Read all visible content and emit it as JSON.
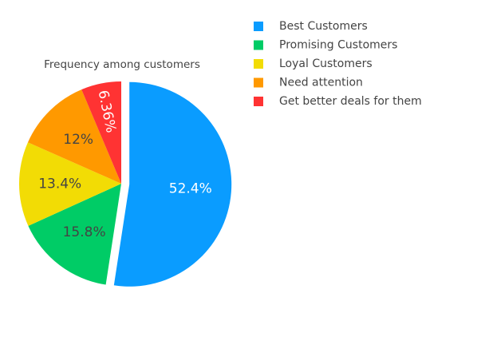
{
  "chart_data": {
    "type": "pie",
    "title": "Frequency among customers",
    "labels": [
      "Best Customers",
      "Promising Customers",
      "Loyal Customers",
      "Need attention",
      "Get better deals for them"
    ],
    "values": [
      52.4,
      15.8,
      13.4,
      12,
      6.36
    ],
    "display_labels": [
      "52.4%",
      "15.8%",
      "13.4%",
      "12%",
      "6.36%"
    ],
    "colors": [
      "#0a9cff",
      "#00cc66",
      "#f2dc05",
      "#ff9900",
      "#ff3333"
    ],
    "pull": [
      0.08,
      0,
      0,
      0,
      0
    ],
    "legend_placement": "top-right"
  }
}
